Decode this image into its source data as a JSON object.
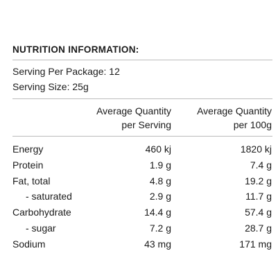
{
  "header": {
    "title": "NUTRITION INFORMATION:"
  },
  "serving": [
    "Serving Per Package: 12",
    "Serving Size: 25g"
  ],
  "table": {
    "headers": [
      [
        "Average Quantity",
        "per Serving"
      ],
      [
        "Average Quantity",
        "per 100g"
      ]
    ],
    "rows": [
      {
        "label": "Energy",
        "sub": false,
        "per_serving": "460 kj",
        "per_100g": "1820 kj"
      },
      {
        "label": "Protein",
        "sub": false,
        "per_serving": "1.9 g",
        "per_100g": "7.4 g"
      },
      {
        "label": "Fat, total",
        "sub": false,
        "per_serving": "4.8 g",
        "per_100g": "19.2 g"
      },
      {
        "label": "- saturated",
        "sub": true,
        "per_serving": "2.9 g",
        "per_100g": "11.7 g"
      },
      {
        "label": "Carbohydrate",
        "sub": false,
        "per_serving": "14.4 g",
        "per_100g": "57.4 g"
      },
      {
        "label": "- sugar",
        "sub": true,
        "per_serving": "7.2 g",
        "per_100g": "28.7 g"
      },
      {
        "label": "Sodium",
        "sub": false,
        "per_serving": "43 mg",
        "per_100g": "171 mg"
      }
    ]
  }
}
